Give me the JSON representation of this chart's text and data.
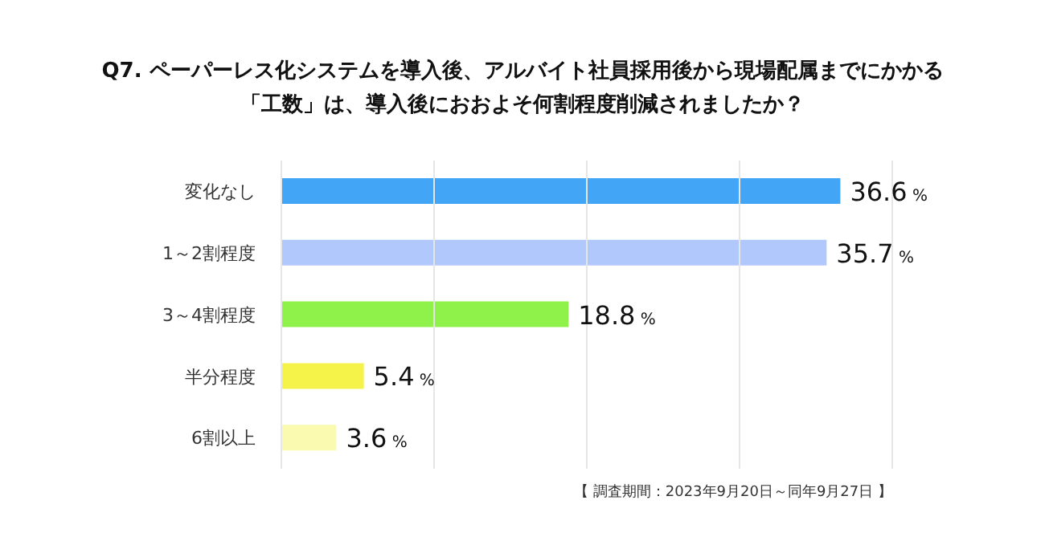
{
  "chart_data": {
    "type": "bar",
    "orientation": "horizontal",
    "title": "Q7. ペーパーレス化システムを導入後、アルバイト社員採用後から現場配属までにかかる「工数」は、導入後におおよそ何割程度削減されましたか？",
    "categories": [
      "変化なし",
      "1～2割程度",
      "3～4割程度",
      "半分程度",
      "6割以上"
    ],
    "values": [
      36.6,
      35.7,
      18.8,
      5.4,
      3.6
    ],
    "colors": [
      "#42a5f5",
      "#b0c8fb",
      "#8ef24a",
      "#f5f34a",
      "#fafab0"
    ],
    "value_labels": [
      "36.6 %",
      "35.7 %",
      "18.8 %",
      "5.4 %",
      "3.6 %"
    ],
    "xlim": [
      0,
      40
    ],
    "xticks": [
      {
        "value": 0,
        "label": null
      },
      {
        "value": 10,
        "label": null
      },
      {
        "value": 20,
        "label": null
      },
      {
        "value": 30,
        "label": null
      },
      {
        "value": 40,
        "label": null
      }
    ],
    "grid": "x",
    "tick_labels": "y",
    "annotations": [
      "【 調査期間：2023年9月20日～同年9月27日 】"
    ]
  }
}
